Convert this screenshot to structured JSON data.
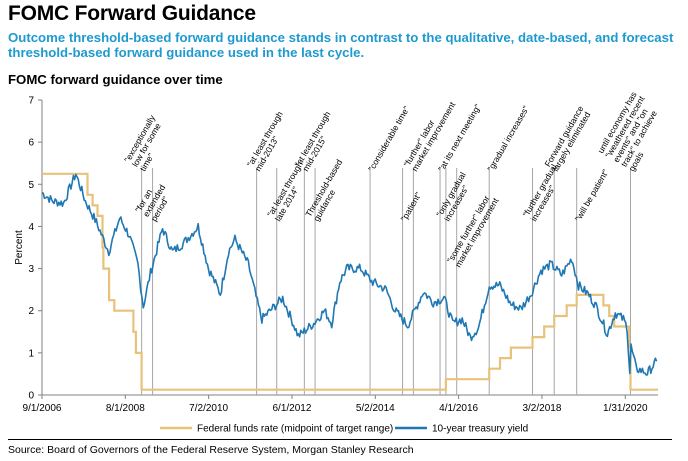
{
  "title": "FOMC Forward Guidance",
  "subtitle": "Outcome threshold-based forward guidance stands in contrast to the qualitative, date-based, and forecast threshold-based forward guidance used in the last cycle.",
  "source": "Source: Board of Governors of the Federal Reserve System, Morgan Stanley Research",
  "chart_data": {
    "type": "line",
    "title": "FOMC forward guidance over time",
    "ylabel": "Percent",
    "ylim": [
      0,
      7
    ],
    "yticks": [
      "0",
      "1",
      "2",
      "3",
      "4",
      "5",
      "6",
      "7"
    ],
    "xlim": [
      "2006-09-01",
      "2020-11-01"
    ],
    "xticks": [
      {
        "date": "2006-09-01",
        "label": "9/1/2006"
      },
      {
        "date": "2008-08-01",
        "label": "8/1/2008"
      },
      {
        "date": "2010-07-02",
        "label": "7/2/2010"
      },
      {
        "date": "2012-06-01",
        "label": "6/1/2012"
      },
      {
        "date": "2014-05-02",
        "label": "5/2/2014"
      },
      {
        "date": "2016-04-01",
        "label": "4/1/2016"
      },
      {
        "date": "2018-03-02",
        "label": "3/2/2018"
      },
      {
        "date": "2020-01-31",
        "label": "1/31/2020"
      }
    ],
    "legend_position": "bottom",
    "colors": {
      "fed_funds": "#e8c27a",
      "treasury": "#1f77b4",
      "event_line": "#a6a6a6"
    },
    "series": [
      {
        "name": "Federal funds rate (midpoint of target range)",
        "style": "step",
        "points": [
          [
            "2006-09-01",
            5.25
          ],
          [
            "2007-09-18",
            4.75
          ],
          [
            "2007-10-31",
            4.5
          ],
          [
            "2007-12-11",
            4.25
          ],
          [
            "2008-01-22",
            3.5
          ],
          [
            "2008-01-30",
            3.0
          ],
          [
            "2008-03-18",
            2.25
          ],
          [
            "2008-04-30",
            2.0
          ],
          [
            "2008-10-08",
            1.5
          ],
          [
            "2008-10-29",
            1.0
          ],
          [
            "2008-12-16",
            0.125
          ],
          [
            "2015-12-16",
            0.375
          ],
          [
            "2016-12-14",
            0.625
          ],
          [
            "2017-03-15",
            0.875
          ],
          [
            "2017-06-14",
            1.125
          ],
          [
            "2017-12-13",
            1.375
          ],
          [
            "2018-03-21",
            1.625
          ],
          [
            "2018-06-13",
            1.875
          ],
          [
            "2018-09-26",
            2.125
          ],
          [
            "2018-12-19",
            2.375
          ],
          [
            "2019-07-31",
            2.125
          ],
          [
            "2019-09-18",
            1.875
          ],
          [
            "2019-10-30",
            1.625
          ],
          [
            "2020-03-03",
            1.125
          ],
          [
            "2020-03-15",
            0.125
          ],
          [
            "2020-11-01",
            0.125
          ]
        ]
      },
      {
        "name": "10-year treasury yield",
        "style": "line",
        "points": [
          [
            "2006-09-01",
            4.8
          ],
          [
            "2006-12-01",
            4.6
          ],
          [
            "2007-03-01",
            4.55
          ],
          [
            "2007-06-12",
            5.25
          ],
          [
            "2007-09-01",
            4.6
          ],
          [
            "2007-12-01",
            4.1
          ],
          [
            "2008-03-15",
            3.4
          ],
          [
            "2008-06-15",
            4.2
          ],
          [
            "2008-09-01",
            3.8
          ],
          [
            "2008-11-15",
            3.1
          ],
          [
            "2008-12-30",
            2.1
          ],
          [
            "2009-03-01",
            2.9
          ],
          [
            "2009-06-10",
            3.95
          ],
          [
            "2009-09-01",
            3.4
          ],
          [
            "2009-12-01",
            3.6
          ],
          [
            "2010-04-05",
            4.0
          ],
          [
            "2010-07-01",
            3.0
          ],
          [
            "2010-10-08",
            2.4
          ],
          [
            "2010-12-15",
            3.4
          ],
          [
            "2011-02-08",
            3.7
          ],
          [
            "2011-06-01",
            3.1
          ],
          [
            "2011-08-15",
            2.2
          ],
          [
            "2011-09-22",
            1.8
          ],
          [
            "2012-03-15",
            2.3
          ],
          [
            "2012-07-25",
            1.4
          ],
          [
            "2012-12-01",
            1.7
          ],
          [
            "2013-03-01",
            2.0
          ],
          [
            "2013-05-01",
            1.7
          ],
          [
            "2013-07-08",
            2.7
          ],
          [
            "2013-09-05",
            3.0
          ],
          [
            "2013-12-31",
            3.0
          ],
          [
            "2014-04-01",
            2.7
          ],
          [
            "2014-08-01",
            2.5
          ],
          [
            "2014-10-15",
            2.0
          ],
          [
            "2015-01-30",
            1.65
          ],
          [
            "2015-06-10",
            2.45
          ],
          [
            "2015-09-01",
            2.2
          ],
          [
            "2015-12-01",
            2.3
          ],
          [
            "2016-02-11",
            1.7
          ],
          [
            "2016-05-01",
            1.8
          ],
          [
            "2016-07-08",
            1.37
          ],
          [
            "2016-09-15",
            1.6
          ],
          [
            "2016-12-15",
            2.6
          ],
          [
            "2017-03-13",
            2.6
          ],
          [
            "2017-06-15",
            2.15
          ],
          [
            "2017-09-07",
            2.05
          ],
          [
            "2017-12-01",
            2.4
          ],
          [
            "2018-02-21",
            2.95
          ],
          [
            "2018-05-17",
            3.1
          ],
          [
            "2018-08-15",
            2.85
          ],
          [
            "2018-11-08",
            3.24
          ],
          [
            "2019-01-03",
            2.6
          ],
          [
            "2019-03-25",
            2.4
          ],
          [
            "2019-06-01",
            2.1
          ],
          [
            "2019-09-03",
            1.45
          ],
          [
            "2019-11-08",
            1.95
          ],
          [
            "2020-01-15",
            1.8
          ],
          [
            "2020-02-15",
            1.6
          ],
          [
            "2020-03-09",
            0.55
          ],
          [
            "2020-03-19",
            1.15
          ],
          [
            "2020-05-01",
            0.63
          ],
          [
            "2020-08-04",
            0.52
          ],
          [
            "2020-10-20",
            0.8
          ]
        ]
      }
    ],
    "annotations": [
      {
        "date": "2008-12-16",
        "text": "\"exceptionally low for some time\""
      },
      {
        "date": "2009-03-18",
        "text": "\"for an extended period\""
      },
      {
        "date": "2011-08-09",
        "text": "\"at least through mid-2013\""
      },
      {
        "date": "2012-01-25",
        "text": "\"at least through late 2014\""
      },
      {
        "date": "2012-09-13",
        "text": "\"at least through mid-2015\""
      },
      {
        "date": "2012-12-12",
        "text": "Threshold-based guidance"
      },
      {
        "date": "2014-03-19",
        "text": "\"considerable time\""
      },
      {
        "date": "2014-12-17",
        "text": "\"patient\""
      },
      {
        "date": "2015-03-18",
        "text": "\"further\" labor market improvement"
      },
      {
        "date": "2015-10-28",
        "text": "\"at its next meeting\""
      },
      {
        "date": "2015-12-16",
        "text": "\"only gradual increases\""
      },
      {
        "date": "2016-03-16",
        "text": "\"some further\" labor market improvement"
      },
      {
        "date": "2016-12-14",
        "text": "\"gradual increases\""
      },
      {
        "date": "2017-12-13",
        "text": "\"further gradual increases\""
      },
      {
        "date": "2018-06-13",
        "text": "Forward guidance largely eliminated"
      },
      {
        "date": "2018-12-19",
        "text": "\"will be patient\""
      },
      {
        "date": "2020-03-15",
        "text": "until economy has \"weathered recent events\" and \"on track\" to achieve goals"
      }
    ]
  }
}
